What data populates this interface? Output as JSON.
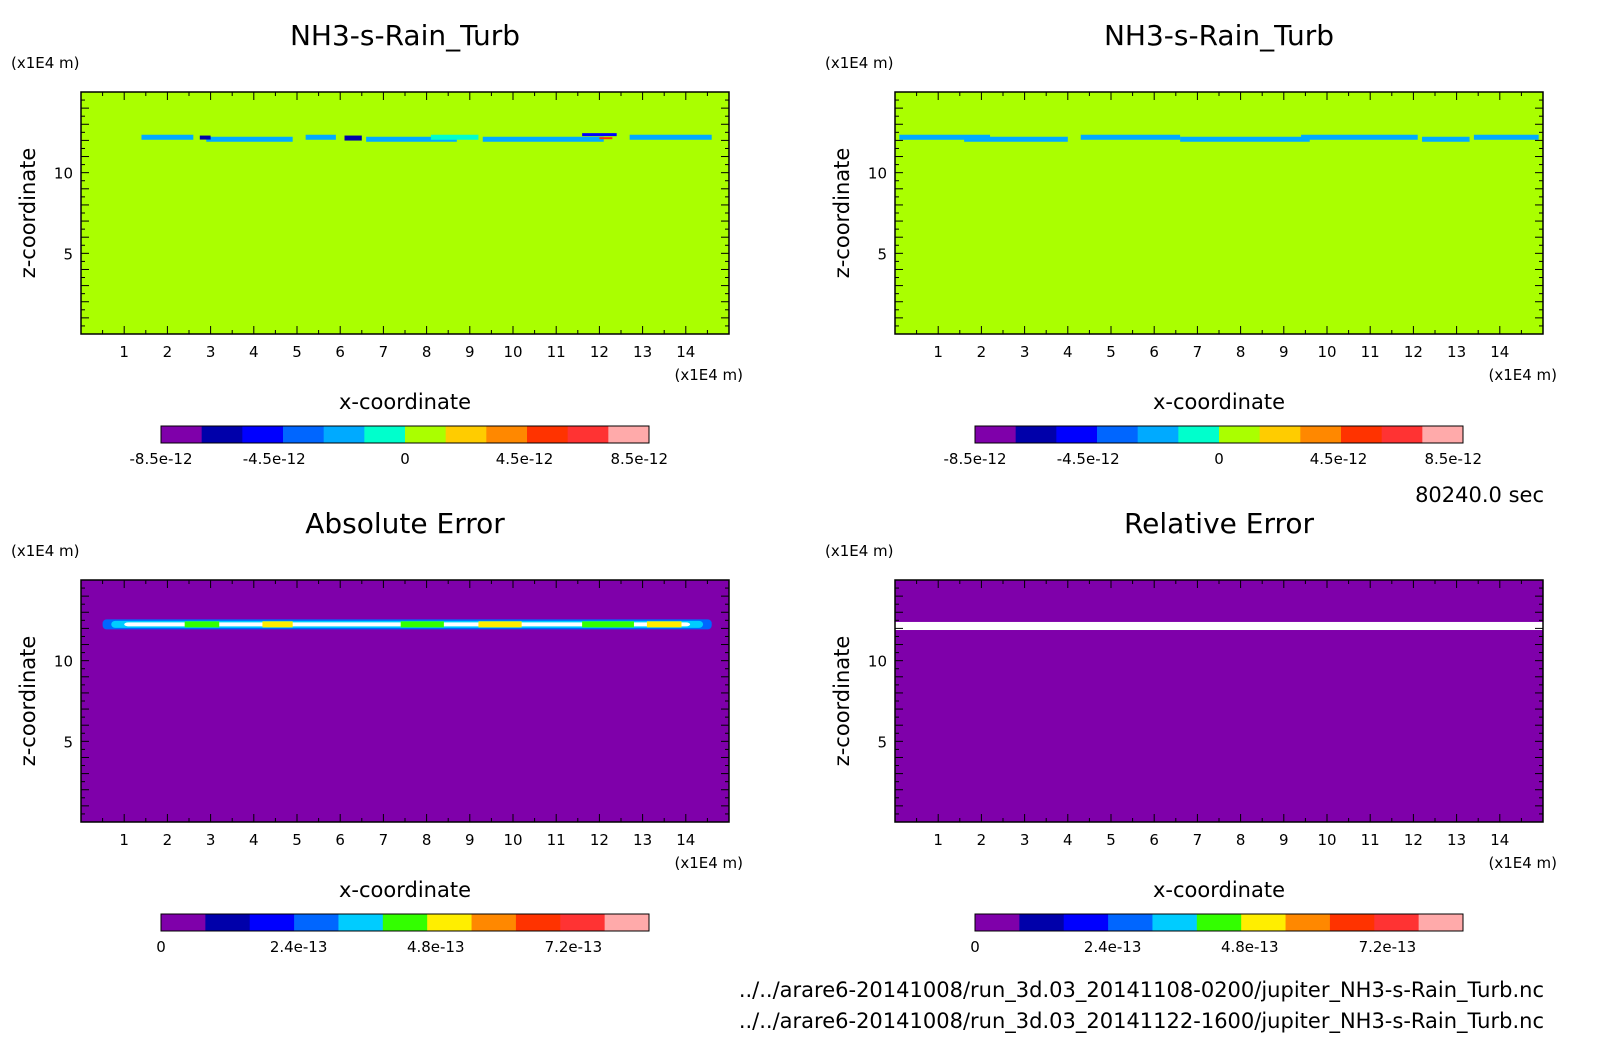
{
  "time_label": "80240.0 sec",
  "file_paths": [
    "../../arare6-20141008/run_3d.03_20141108-0200/jupiter_NH3-s-Rain_Turb.nc",
    "../../arare6-20141008/run_3d.03_20141122-1600/jupiter_NH3-s-Rain_Turb.nc"
  ],
  "colors": {
    "field_background": "#aaff00",
    "error_background": "#7f00aa",
    "relative_band": "#ffffff"
  },
  "chart_data": [
    {
      "type": "heatmap",
      "title": "NH3-s-Rain_Turb",
      "xlabel": "x-coordinate",
      "ylabel": "z-coordinate",
      "x_unit": "(x1E4 m)",
      "y_unit": "(x1E4 m)",
      "x_ticks": [
        "1",
        "2",
        "3",
        "4",
        "5",
        "6",
        "7",
        "8",
        "9",
        "10",
        "11",
        "12",
        "13",
        "14"
      ],
      "y_ticks": [
        "5",
        "10"
      ],
      "xlim": [
        0,
        15
      ],
      "ylim": [
        0,
        15
      ],
      "colorbar": {
        "colors": [
          "#7f00aa",
          "#0000aa",
          "#0000ff",
          "#0066ff",
          "#00aaff",
          "#00ffcc",
          "#aaff00",
          "#ffcc00",
          "#ff8800",
          "#ff3300",
          "#ff3333",
          "#ffaaaa"
        ],
        "labels": [
          "-8.5e-12",
          "-4.5e-12",
          "0",
          "4.5e-12",
          "8.5e-12"
        ]
      }
    },
    {
      "type": "heatmap",
      "title": "NH3-s-Rain_Turb",
      "xlabel": "x-coordinate",
      "ylabel": "z-coordinate",
      "x_unit": "(x1E4 m)",
      "y_unit": "(x1E4 m)",
      "x_ticks": [
        "1",
        "2",
        "3",
        "4",
        "5",
        "6",
        "7",
        "8",
        "9",
        "10",
        "11",
        "12",
        "13",
        "14"
      ],
      "y_ticks": [
        "5",
        "10"
      ],
      "xlim": [
        0,
        15
      ],
      "ylim": [
        0,
        15
      ],
      "colorbar": {
        "colors": [
          "#7f00aa",
          "#0000aa",
          "#0000ff",
          "#0066ff",
          "#00aaff",
          "#00ffcc",
          "#aaff00",
          "#ffcc00",
          "#ff8800",
          "#ff3300",
          "#ff3333",
          "#ffaaaa"
        ],
        "labels": [
          "-8.5e-12",
          "-4.5e-12",
          "0",
          "4.5e-12",
          "8.5e-12"
        ]
      }
    },
    {
      "type": "heatmap",
      "title": "Absolute Error",
      "xlabel": "x-coordinate",
      "ylabel": "z-coordinate",
      "x_unit": "(x1E4 m)",
      "y_unit": "(x1E4 m)",
      "x_ticks": [
        "1",
        "2",
        "3",
        "4",
        "5",
        "6",
        "7",
        "8",
        "9",
        "10",
        "11",
        "12",
        "13",
        "14"
      ],
      "y_ticks": [
        "5",
        "10"
      ],
      "xlim": [
        0,
        15
      ],
      "ylim": [
        0,
        15
      ],
      "colorbar": {
        "colors": [
          "#7f00aa",
          "#0000aa",
          "#0000ff",
          "#0066ff",
          "#00ccff",
          "#33ff00",
          "#ffee00",
          "#ff8800",
          "#ff3300",
          "#ff3333",
          "#ffaaaa"
        ],
        "labels": [
          "0",
          "2.4e-13",
          "4.8e-13",
          "7.2e-13"
        ]
      }
    },
    {
      "type": "heatmap",
      "title": "Relative Error",
      "xlabel": "x-coordinate",
      "ylabel": "z-coordinate",
      "x_unit": "(x1E4 m)",
      "y_unit": "(x1E4 m)",
      "x_ticks": [
        "1",
        "2",
        "3",
        "4",
        "5",
        "6",
        "7",
        "8",
        "9",
        "10",
        "11",
        "12",
        "13",
        "14"
      ],
      "y_ticks": [
        "5",
        "10"
      ],
      "xlim": [
        0,
        15
      ],
      "ylim": [
        0,
        15
      ],
      "colorbar": {
        "colors": [
          "#7f00aa",
          "#0000aa",
          "#0000ff",
          "#0066ff",
          "#00ccff",
          "#33ff00",
          "#ffee00",
          "#ff8800",
          "#ff3300",
          "#ff3333",
          "#ffaaaa"
        ],
        "labels": [
          "0",
          "2.4e-13",
          "4.8e-13",
          "7.2e-13"
        ]
      }
    }
  ]
}
